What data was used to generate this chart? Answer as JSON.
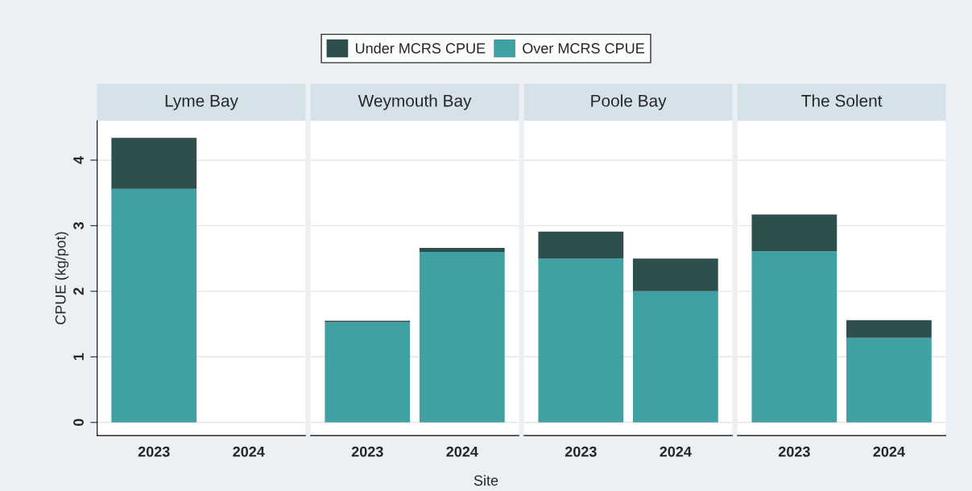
{
  "chart_data": [
    {
      "type": "bar",
      "title": "Lyme Bay",
      "categories": [
        "2023",
        "2024"
      ],
      "stacked": true,
      "ylabel": "CPUE (kg/pot)",
      "legend": "top",
      "grid": "y",
      "ylim": [
        -0.2,
        4.6
      ],
      "yticks": [
        0,
        1,
        2,
        3,
        4
      ],
      "series": [
        {
          "name": "Over MCRS CPUE",
          "color": "#40a0a4",
          "values": [
            3.56,
            null
          ]
        },
        {
          "name": "Under MCRS CPUE",
          "color": "#2f4f4f",
          "values": [
            0.78,
            null
          ]
        }
      ]
    },
    {
      "type": "bar",
      "title": "Weymouth Bay",
      "xlabel": "Site",
      "categories": [
        "2023",
        "2024"
      ],
      "stacked": true,
      "grid": "y",
      "ylim": [
        -0.2,
        4.6
      ],
      "yticks": [
        0,
        1,
        2,
        3,
        4
      ],
      "tick_labels": "x",
      "series": [
        {
          "color": "#40a0a4",
          "values": [
            1.53,
            2.6
          ]
        },
        {
          "color": "#2f4f4f",
          "values": [
            0.02,
            0.06
          ]
        }
      ]
    },
    {
      "type": "bar",
      "title": "Poole Bay",
      "categories": [
        "2023",
        "2024"
      ],
      "stacked": true,
      "grid": "y",
      "ylim": [
        -0.2,
        4.6
      ],
      "yticks": [
        0,
        1,
        2,
        3,
        4
      ],
      "tick_labels": "x",
      "series": [
        {
          "color": "#40a0a4",
          "values": [
            2.5,
            2.0
          ]
        },
        {
          "color": "#2f4f4f",
          "values": [
            0.41,
            0.5
          ]
        }
      ]
    },
    {
      "type": "bar",
      "title": "The Solent",
      "categories": [
        "2023",
        "2024"
      ],
      "stacked": true,
      "grid": "y",
      "ylim": [
        -0.2,
        4.6
      ],
      "yticks": [
        0,
        1,
        2,
        3,
        4
      ],
      "tick_labels": "x",
      "series": [
        {
          "color": "#40a0a4",
          "values": [
            2.61,
            1.29
          ]
        },
        {
          "color": "#2f4f4f",
          "values": [
            0.56,
            0.27
          ]
        }
      ]
    }
  ]
}
